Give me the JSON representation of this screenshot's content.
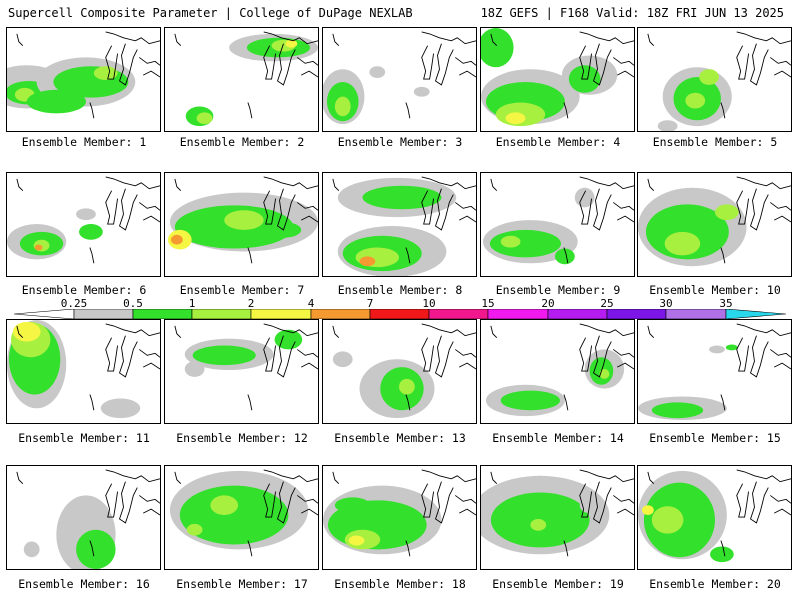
{
  "header": {
    "left_title": "Supercell Composite Parameter | College of DuPage NEXLAB",
    "right_title": "18Z GEFS | F168 Valid: 18Z FRI JUN 13 2025"
  },
  "panel_label_prefix": "Ensemble Member: ",
  "members": [
    {
      "label": "Ensemble Member: 1"
    },
    {
      "label": "Ensemble Member: 2"
    },
    {
      "label": "Ensemble Member: 3"
    },
    {
      "label": "Ensemble Member: 4"
    },
    {
      "label": "Ensemble Member: 5"
    },
    {
      "label": "Ensemble Member: 6"
    },
    {
      "label": "Ensemble Member: 7"
    },
    {
      "label": "Ensemble Member: 8"
    },
    {
      "label": "Ensemble Member: 9"
    },
    {
      "label": "Ensemble Member: 10"
    },
    {
      "label": "Ensemble Member: 11"
    },
    {
      "label": "Ensemble Member: 12"
    },
    {
      "label": "Ensemble Member: 13"
    },
    {
      "label": "Ensemble Member: 14"
    },
    {
      "label": "Ensemble Member: 15"
    },
    {
      "label": "Ensemble Member: 16"
    },
    {
      "label": "Ensemble Member: 17"
    },
    {
      "label": "Ensemble Member: 18"
    },
    {
      "label": "Ensemble Member: 19"
    },
    {
      "label": "Ensemble Member: 20"
    }
  ],
  "colorbar": {
    "ticks": [
      "0.25",
      "0.5",
      "1",
      "2",
      "4",
      "7",
      "10",
      "15",
      "20",
      "25",
      "30",
      "35"
    ],
    "colors": [
      "#c8c8c8",
      "#33e02c",
      "#a8f040",
      "#f5f543",
      "#f59a30",
      "#f01818",
      "#f0188c",
      "#f01aef",
      "#b41cef",
      "#7b16e6",
      "#b070e6",
      "#28d7ec"
    ]
  }
}
